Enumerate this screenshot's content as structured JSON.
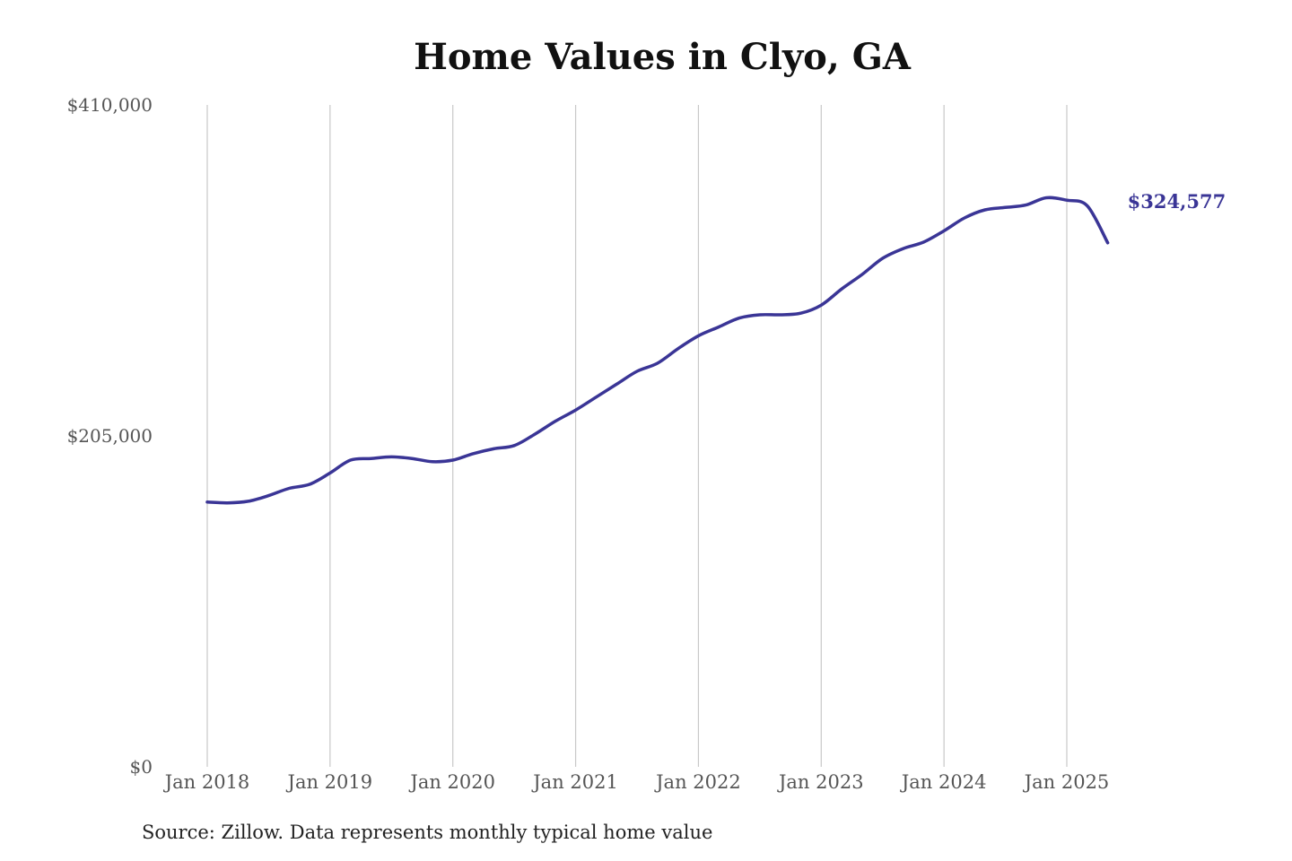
{
  "chart_data": {
    "type": "line",
    "title": "Home Values in Clyo, GA",
    "source": "Source: Zillow. Data represents monthly typical home value",
    "xlabel": "",
    "ylabel": "",
    "ylim": [
      0,
      410000
    ],
    "y_ticks": [
      {
        "value": 0,
        "label": "$0"
      },
      {
        "value": 205000,
        "label": "$205,000"
      },
      {
        "value": 410000,
        "label": "$410,000"
      }
    ],
    "x_ticks": [
      {
        "value": "2018-01",
        "label": "Jan 2018"
      },
      {
        "value": "2019-01",
        "label": "Jan 2019"
      },
      {
        "value": "2020-01",
        "label": "Jan 2020"
      },
      {
        "value": "2021-01",
        "label": "Jan 2021"
      },
      {
        "value": "2022-01",
        "label": "Jan 2022"
      },
      {
        "value": "2023-01",
        "label": "Jan 2023"
      },
      {
        "value": "2024-01",
        "label": "Jan 2024"
      },
      {
        "value": "2025-01",
        "label": "Jan 2025"
      }
    ],
    "grid": {
      "vertical": true,
      "horizontal": false
    },
    "line_color": "#3a3596",
    "end_label": "$324,577",
    "series": [
      {
        "x": [
          "2018-01",
          "2018-03",
          "2018-05",
          "2018-07",
          "2018-09",
          "2018-11",
          "2019-01",
          "2019-03",
          "2019-05",
          "2019-07",
          "2019-09",
          "2019-11",
          "2020-01",
          "2020-03",
          "2020-05",
          "2020-07",
          "2020-09",
          "2020-11",
          "2021-01",
          "2021-03",
          "2021-05",
          "2021-07",
          "2021-09",
          "2021-11",
          "2022-01",
          "2022-03",
          "2022-05",
          "2022-07",
          "2022-09",
          "2022-11",
          "2023-01",
          "2023-03",
          "2023-05",
          "2023-07",
          "2023-09",
          "2023-11",
          "2024-01",
          "2024-03",
          "2024-05",
          "2024-07",
          "2024-09",
          "2024-11",
          "2025-01",
          "2025-03",
          "2025-05"
        ],
        "y": [
          164000,
          163500,
          164500,
          168000,
          172500,
          175000,
          182000,
          190000,
          191000,
          192000,
          191000,
          189000,
          190000,
          194000,
          197000,
          199000,
          206000,
          214000,
          221000,
          229000,
          237000,
          245000,
          250000,
          259000,
          267000,
          272500,
          278000,
          280000,
          280000,
          281000,
          286000,
          296000,
          305000,
          315000,
          321000,
          325000,
          332000,
          340000,
          345000,
          346500,
          348000,
          352500,
          351000,
          347500,
          324577
        ]
      }
    ]
  }
}
